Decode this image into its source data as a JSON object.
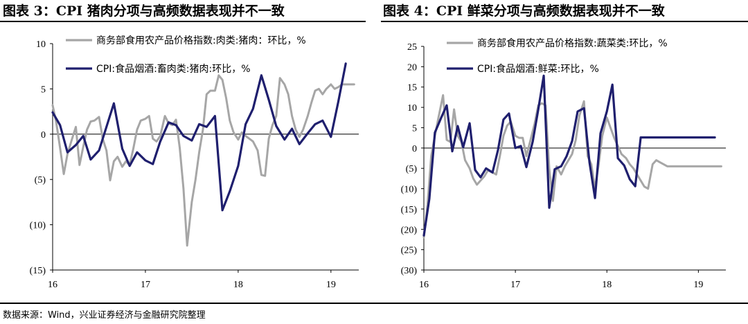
{
  "colors": {
    "gray": "#a6a6a6",
    "navy": "#1f1f6e"
  },
  "source": "数据来源：Wind，兴业证券经济与金融研究院整理",
  "chart_data": [
    {
      "type": "line",
      "title": "图表 3：CPI 猪肉分项与高频数据表现并不一致",
      "ylim": [
        -15,
        10
      ],
      "yticks": [
        10,
        5,
        0,
        -5,
        -10,
        -15
      ],
      "ytick_labels": [
        "10",
        "5",
        "0",
        "(5)",
        "(10)",
        "(15)"
      ],
      "xlim": [
        2016.0,
        2019.3
      ],
      "xticks": [
        2016,
        2017,
        2018,
        2019
      ],
      "xtick_labels": [
        "16",
        "17",
        "18",
        "19"
      ],
      "legend_position": "top",
      "series": [
        {
          "name": "商务部食用农产品价格指数:肉类:猪肉：环比，%",
          "color": "#a6a6a6",
          "x": [
            2016.0,
            2016.04,
            2016.08,
            2016.12,
            2016.16,
            2016.21,
            2016.25,
            2016.29,
            2016.33,
            2016.37,
            2016.41,
            2016.45,
            2016.5,
            2016.54,
            2016.58,
            2016.62,
            2016.66,
            2016.7,
            2016.75,
            2016.79,
            2016.83,
            2016.87,
            2016.91,
            2016.95,
            2017.0,
            2017.04,
            2017.08,
            2017.12,
            2017.16,
            2017.21,
            2017.25,
            2017.29,
            2017.33,
            2017.37,
            2017.41,
            2017.45,
            2017.5,
            2017.54,
            2017.58,
            2017.62,
            2017.66,
            2017.7,
            2017.75,
            2017.79,
            2017.83,
            2017.87,
            2017.91,
            2017.95,
            2018.0,
            2018.04,
            2018.08,
            2018.12,
            2018.16,
            2018.21,
            2018.25,
            2018.29,
            2018.33,
            2018.37,
            2018.41,
            2018.45,
            2018.5,
            2018.54,
            2018.58,
            2018.62,
            2018.66,
            2018.7,
            2018.75,
            2018.79,
            2018.83,
            2018.87,
            2018.91,
            2018.95,
            2019.0,
            2019.04,
            2019.08,
            2019.12,
            2019.16,
            2019.21,
            2019.25
          ],
          "y": [
            3.2,
            1.2,
            -1.5,
            -4.4,
            -2.2,
            -0.5,
            0.8,
            -3.4,
            -1.4,
            0.5,
            1.4,
            1.5,
            1.9,
            -0.5,
            -1.8,
            -5.1,
            -3.0,
            -2.5,
            -3.6,
            -3.0,
            -3.4,
            -1.6,
            0.5,
            1.5,
            1.7,
            2.0,
            -0.5,
            -0.8,
            -0.2,
            2.0,
            1.2,
            1.0,
            1.6,
            -1.5,
            -6.0,
            -12.3,
            -7.5,
            -5.0,
            -2.0,
            0.5,
            4.4,
            4.8,
            4.8,
            6.5,
            6.0,
            4.0,
            1.5,
            0.2,
            -0.6,
            0.2,
            -0.2,
            -0.5,
            -0.8,
            -1.8,
            -4.5,
            -4.6,
            -0.5,
            1.0,
            2.0,
            6.2,
            5.5,
            4.4,
            2.0,
            0.5,
            -0.3,
            0.5,
            2.0,
            3.5,
            4.8,
            5.0,
            4.4,
            5.0,
            5.5,
            5.0,
            5.2,
            5.5,
            5.5,
            5.5,
            5.5
          ]
        },
        {
          "name": "CPI:食品烟酒:畜肉类:猪肉:环比，%",
          "color": "#1f1f6e",
          "x": [
            2016.0,
            2016.08,
            2016.16,
            2016.25,
            2016.33,
            2016.41,
            2016.5,
            2016.58,
            2016.66,
            2016.75,
            2016.83,
            2016.91,
            2017.0,
            2017.08,
            2017.16,
            2017.25,
            2017.33,
            2017.41,
            2017.5,
            2017.58,
            2017.66,
            2017.75,
            2017.83,
            2017.91,
            2018.0,
            2018.08,
            2018.16,
            2018.25,
            2018.33,
            2018.41,
            2018.5,
            2018.58,
            2018.66,
            2018.75,
            2018.83,
            2018.91,
            2019.0,
            2019.08,
            2019.16
          ],
          "y": [
            2.4,
            1.0,
            -2.0,
            -1.2,
            -0.2,
            -2.8,
            -1.8,
            0.8,
            3.4,
            -1.6,
            -3.5,
            -2.0,
            -2.9,
            -3.3,
            -0.8,
            1.3,
            1.0,
            -0.2,
            -0.7,
            1.1,
            0.8,
            2.0,
            -8.4,
            -6.3,
            -3.5,
            1.1,
            2.8,
            6.5,
            3.8,
            0.9,
            -0.6,
            0.6,
            -1.1,
            0.1,
            1.1,
            1.5,
            -0.3,
            3.6,
            7.8
          ]
        }
      ]
    },
    {
      "type": "line",
      "title": "图表 4：CPI 鲜菜分项与高频数据表现并不一致",
      "ylim": [
        -30,
        25
      ],
      "yticks": [
        25,
        20,
        15,
        10,
        5,
        0,
        -5,
        -10,
        -15,
        -20,
        -25,
        -30
      ],
      "ytick_labels": [
        "25",
        "20",
        "15",
        "10",
        "5",
        "0",
        "(5)",
        "(10)",
        "(15)",
        "(20)",
        "(25)",
        "(30)"
      ],
      "xlim": [
        2016.0,
        2019.3
      ],
      "xticks": [
        2016,
        2017,
        2018,
        2019
      ],
      "xtick_labels": [
        "16",
        "17",
        "18",
        "19"
      ],
      "legend_position": "top",
      "series": [
        {
          "name": "商务部食用农产品价格指数:蔬菜类:环比，%",
          "color": "#a6a6a6",
          "x": [
            2016.0,
            2016.04,
            2016.08,
            2016.12,
            2016.16,
            2016.21,
            2016.25,
            2016.29,
            2016.33,
            2016.37,
            2016.41,
            2016.45,
            2016.5,
            2016.54,
            2016.58,
            2016.62,
            2016.66,
            2016.7,
            2016.75,
            2016.79,
            2016.83,
            2016.87,
            2016.91,
            2016.95,
            2017.0,
            2017.04,
            2017.08,
            2017.12,
            2017.16,
            2017.21,
            2017.25,
            2017.29,
            2017.33,
            2017.37,
            2017.41,
            2017.45,
            2017.5,
            2017.54,
            2017.58,
            2017.62,
            2017.66,
            2017.7,
            2017.75,
            2017.79,
            2017.83,
            2017.87,
            2017.91,
            2017.95,
            2018.0,
            2018.04,
            2018.08,
            2018.12,
            2018.16,
            2018.21,
            2018.25,
            2018.29,
            2018.33,
            2018.37,
            2018.41,
            2018.45,
            2018.5,
            2018.54,
            2018.58,
            2018.62,
            2018.66,
            2018.7,
            2018.75,
            2018.79,
            2018.83,
            2018.87,
            2018.91,
            2018.95,
            2019.0,
            2019.04,
            2019.08,
            2019.12,
            2019.16,
            2019.21,
            2019.25
          ],
          "y": [
            -22.0,
            -14.0,
            -2.0,
            3.0,
            7.5,
            13.0,
            2.0,
            1.5,
            9.5,
            3.0,
            1.5,
            -3.0,
            -5.0,
            -7.5,
            -9.0,
            -8.0,
            -7.0,
            -5.5,
            -6.0,
            -6.5,
            -2.0,
            3.0,
            5.5,
            6.5,
            3.0,
            2.5,
            2.5,
            -2.0,
            1.5,
            6.0,
            10.5,
            11.0,
            10.5,
            -5.0,
            -13.0,
            -4.5,
            -6.5,
            -4.5,
            -3.0,
            -1.5,
            2.0,
            8.0,
            11.5,
            -2.0,
            -4.0,
            -10.0,
            -4.0,
            3.0,
            7.5,
            5.0,
            2.5,
            0.5,
            -1.5,
            -2.5,
            -4.0,
            -5.0,
            -6.5,
            -8.0,
            -9.5,
            -10.0,
            -4.0,
            -3.0,
            -3.5,
            -4.0,
            -4.5,
            -4.5,
            -4.5,
            -4.5,
            -4.5,
            -4.5,
            -4.5,
            -4.5,
            -4.5,
            -4.5,
            -4.5,
            -4.5,
            -4.5,
            -4.5,
            -4.5
          ]
        },
        {
          "name": "CPI:食品烟酒:鲜菜:环比，%",
          "color": "#1f1f6e",
          "x": [
            2016.0,
            2016.06,
            2016.12,
            2016.19,
            2016.25,
            2016.31,
            2016.37,
            2016.43,
            2016.5,
            2016.56,
            2016.62,
            2016.68,
            2016.75,
            2016.81,
            2016.87,
            2016.93,
            2017.0,
            2017.06,
            2017.12,
            2017.19,
            2017.25,
            2017.31,
            2017.37,
            2017.43,
            2017.5,
            2017.56,
            2017.62,
            2017.68,
            2017.75,
            2017.81,
            2017.87,
            2017.93,
            2018.0,
            2018.06,
            2018.12,
            2018.19,
            2018.25,
            2018.31,
            2018.37,
            2018.43,
            2018.5,
            2018.56,
            2018.62,
            2018.68,
            2018.75,
            2018.81,
            2018.87,
            2018.93,
            2019.0,
            2019.06,
            2019.12,
            2019.18
          ],
          "y": [
            -21.5,
            -12.5,
            3.8,
            7.5,
            10.5,
            -0.8,
            5.4,
            0.2,
            6.1,
            -5.4,
            -7.2,
            -5.0,
            -6.0,
            -0.5,
            7.0,
            8.5,
            0.0,
            0.5,
            -4.7,
            1.6,
            9.5,
            17.8,
            -14.7,
            -5.2,
            -4.5,
            -2.0,
            1.7,
            9.0,
            9.8,
            -3.5,
            -12.3,
            3.6,
            9.0,
            15.6,
            -2.5,
            -4.3,
            -7.7,
            -9.4,
            2.6,
            2.6,
            2.6,
            2.6,
            2.6,
            2.6,
            2.6,
            2.6,
            2.6,
            2.6,
            2.6,
            2.6,
            2.6,
            2.6
          ]
        }
      ]
    }
  ]
}
